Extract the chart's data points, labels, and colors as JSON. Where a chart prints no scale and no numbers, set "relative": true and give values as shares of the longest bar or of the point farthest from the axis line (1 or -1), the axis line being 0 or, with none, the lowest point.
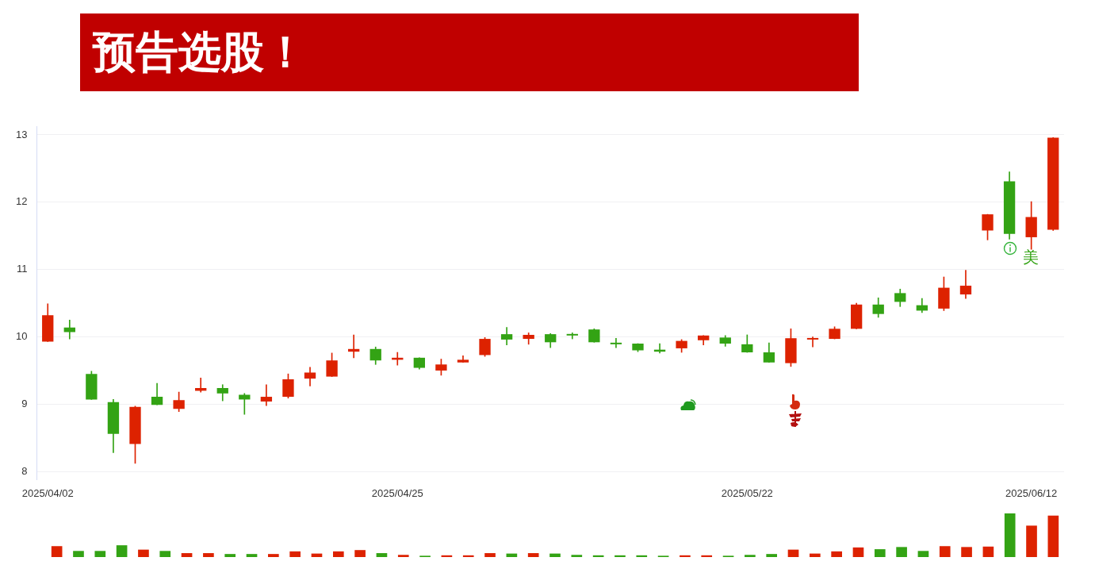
{
  "chart_data": [
    {
      "type": "candlestick",
      "title": "预告选股！",
      "categories": [
        "2025/04/02",
        null,
        null,
        null,
        null,
        null,
        null,
        null,
        null,
        null,
        null,
        null,
        null,
        null,
        null,
        null,
        "2025/04/25",
        null,
        null,
        null,
        null,
        null,
        null,
        null,
        null,
        null,
        null,
        null,
        null,
        null,
        null,
        null,
        "2025/05/22",
        null,
        null,
        null,
        null,
        null,
        null,
        null,
        null,
        null,
        null,
        null,
        null,
        "2025/06/12",
        null
      ],
      "ohlc": [
        [
          9.93,
          10.49,
          9.93,
          10.32
        ],
        [
          10.14,
          10.25,
          9.97,
          10.07
        ],
        [
          9.45,
          9.49,
          9.07,
          9.07
        ],
        [
          9.03,
          9.07,
          8.28,
          8.56
        ],
        [
          8.41,
          8.97,
          8.12,
          8.96
        ],
        [
          9.11,
          9.31,
          8.99,
          8.99
        ],
        [
          8.93,
          9.18,
          8.89,
          9.06
        ],
        [
          9.2,
          9.39,
          9.18,
          9.24
        ],
        [
          9.24,
          9.29,
          9.05,
          9.16
        ],
        [
          9.14,
          9.16,
          8.85,
          9.07
        ],
        [
          9.04,
          9.29,
          8.98,
          9.11
        ],
        [
          9.11,
          9.45,
          9.09,
          9.37
        ],
        [
          9.38,
          9.55,
          9.27,
          9.47
        ],
        [
          9.41,
          9.76,
          9.41,
          9.65
        ],
        [
          9.78,
          10.03,
          9.69,
          9.82
        ],
        [
          9.82,
          9.85,
          9.59,
          9.65
        ],
        [
          9.66,
          9.77,
          9.58,
          9.69
        ],
        [
          9.69,
          9.69,
          9.52,
          9.54
        ],
        [
          9.5,
          9.67,
          9.43,
          9.59
        ],
        [
          9.62,
          9.72,
          9.62,
          9.66
        ],
        [
          9.73,
          9.99,
          9.71,
          9.97
        ],
        [
          10.04,
          10.14,
          9.88,
          9.96
        ],
        [
          9.97,
          10.06,
          9.89,
          10.03
        ],
        [
          10.04,
          10.05,
          9.84,
          9.92
        ],
        [
          10.04,
          10.06,
          9.97,
          10.02
        ],
        [
          10.11,
          10.12,
          9.92,
          9.92
        ],
        [
          9.9,
          9.98,
          9.84,
          9.89
        ],
        [
          9.9,
          9.9,
          9.78,
          9.8
        ],
        [
          9.81,
          9.9,
          9.76,
          9.78
        ],
        [
          9.83,
          9.96,
          9.77,
          9.94
        ],
        [
          9.95,
          10.02,
          9.88,
          10.02
        ],
        [
          9.99,
          10.02,
          9.86,
          9.9
        ],
        [
          9.89,
          10.03,
          9.77,
          9.77
        ],
        [
          9.77,
          9.91,
          9.62,
          9.62
        ],
        [
          9.61,
          10.12,
          9.56,
          9.98
        ],
        [
          9.96,
          10.0,
          9.85,
          9.98
        ],
        [
          9.97,
          10.15,
          9.97,
          10.12
        ],
        [
          10.12,
          10.5,
          10.12,
          10.48
        ],
        [
          10.48,
          10.58,
          10.29,
          10.34
        ],
        [
          10.65,
          10.71,
          10.45,
          10.52
        ],
        [
          10.47,
          10.57,
          10.36,
          10.39
        ],
        [
          10.42,
          10.89,
          10.39,
          10.73
        ],
        [
          10.63,
          10.99,
          10.57,
          10.76
        ],
        [
          11.58,
          11.82,
          11.44,
          11.82
        ],
        [
          12.31,
          12.45,
          11.45,
          11.53
        ],
        [
          11.48,
          12.01,
          11.3,
          11.78
        ],
        [
          11.59,
          12.96,
          11.58,
          12.96
        ]
      ],
      "colors": [
        "#dd2200",
        "#33a314",
        "#33a314",
        "#33a314",
        "#dd2200",
        "#33a314",
        "#dd2200",
        "#dd2200",
        "#33a314",
        "#33a314",
        "#dd2200",
        "#dd2200",
        "#dd2200",
        "#dd2200",
        "#dd2200",
        "#33a314",
        "#dd2200",
        "#33a314",
        "#dd2200",
        "#dd2200",
        "#dd2200",
        "#33a314",
        "#dd2200",
        "#33a314",
        "#33a314",
        "#33a314",
        "#33a314",
        "#33a314",
        "#33a314",
        "#dd2200",
        "#dd2200",
        "#33a314",
        "#33a314",
        "#33a314",
        "#dd2200",
        "#dd2200",
        "#dd2200",
        "#dd2200",
        "#33a314",
        "#33a314",
        "#33a314",
        "#dd2200",
        "#dd2200",
        "#dd2200",
        "#33a314",
        "#dd2200",
        "#dd2200"
      ],
      "ylim": [
        7.88,
        13.12
      ],
      "yticks": [
        8,
        9,
        10,
        11,
        12,
        13
      ],
      "grid": "y",
      "legend": false,
      "annotations": [
        "美"
      ]
    },
    {
      "type": "bar",
      "relative": true,
      "tick_labels": false,
      "legend": false,
      "categories": [
        null,
        null,
        null,
        null,
        null,
        null,
        null,
        null,
        null,
        null,
        null,
        null,
        null,
        null,
        null,
        null,
        null,
        null,
        null,
        null,
        null,
        null,
        null,
        null,
        null,
        null,
        null,
        null,
        null,
        null,
        null,
        null,
        null,
        null,
        null,
        null,
        null,
        null,
        null,
        null,
        null,
        null,
        null,
        null,
        null,
        null,
        null
      ],
      "values": [
        0.25,
        0.14,
        0.14,
        0.27,
        0.17,
        0.14,
        0.09,
        0.09,
        0.07,
        0.07,
        0.07,
        0.13,
        0.08,
        0.13,
        0.16,
        0.09,
        0.05,
        0.03,
        0.04,
        0.04,
        0.09,
        0.08,
        0.09,
        0.08,
        0.05,
        0.04,
        0.04,
        0.04,
        0.03,
        0.04,
        0.04,
        0.03,
        0.05,
        0.07,
        0.17,
        0.08,
        0.13,
        0.22,
        0.18,
        0.23,
        0.14,
        0.25,
        0.23,
        0.24,
        1,
        0.72,
        0.95
      ],
      "colors": [
        "#dd2200",
        "#33a314",
        "#33a314",
        "#33a314",
        "#dd2200",
        "#33a314",
        "#dd2200",
        "#dd2200",
        "#33a314",
        "#33a314",
        "#dd2200",
        "#dd2200",
        "#dd2200",
        "#dd2200",
        "#dd2200",
        "#33a314",
        "#dd2200",
        "#33a314",
        "#dd2200",
        "#dd2200",
        "#dd2200",
        "#33a314",
        "#dd2200",
        "#33a314",
        "#33a314",
        "#33a314",
        "#33a314",
        "#33a314",
        "#33a314",
        "#dd2200",
        "#dd2200",
        "#33a314",
        "#33a314",
        "#33a314",
        "#dd2200",
        "#dd2200",
        "#dd2200",
        "#dd2200",
        "#33a314",
        "#33a314",
        "#33a314",
        "#dd2200",
        "#dd2200",
        "#dd2200",
        "#33a314",
        "#dd2200",
        "#dd2200"
      ]
    }
  ]
}
